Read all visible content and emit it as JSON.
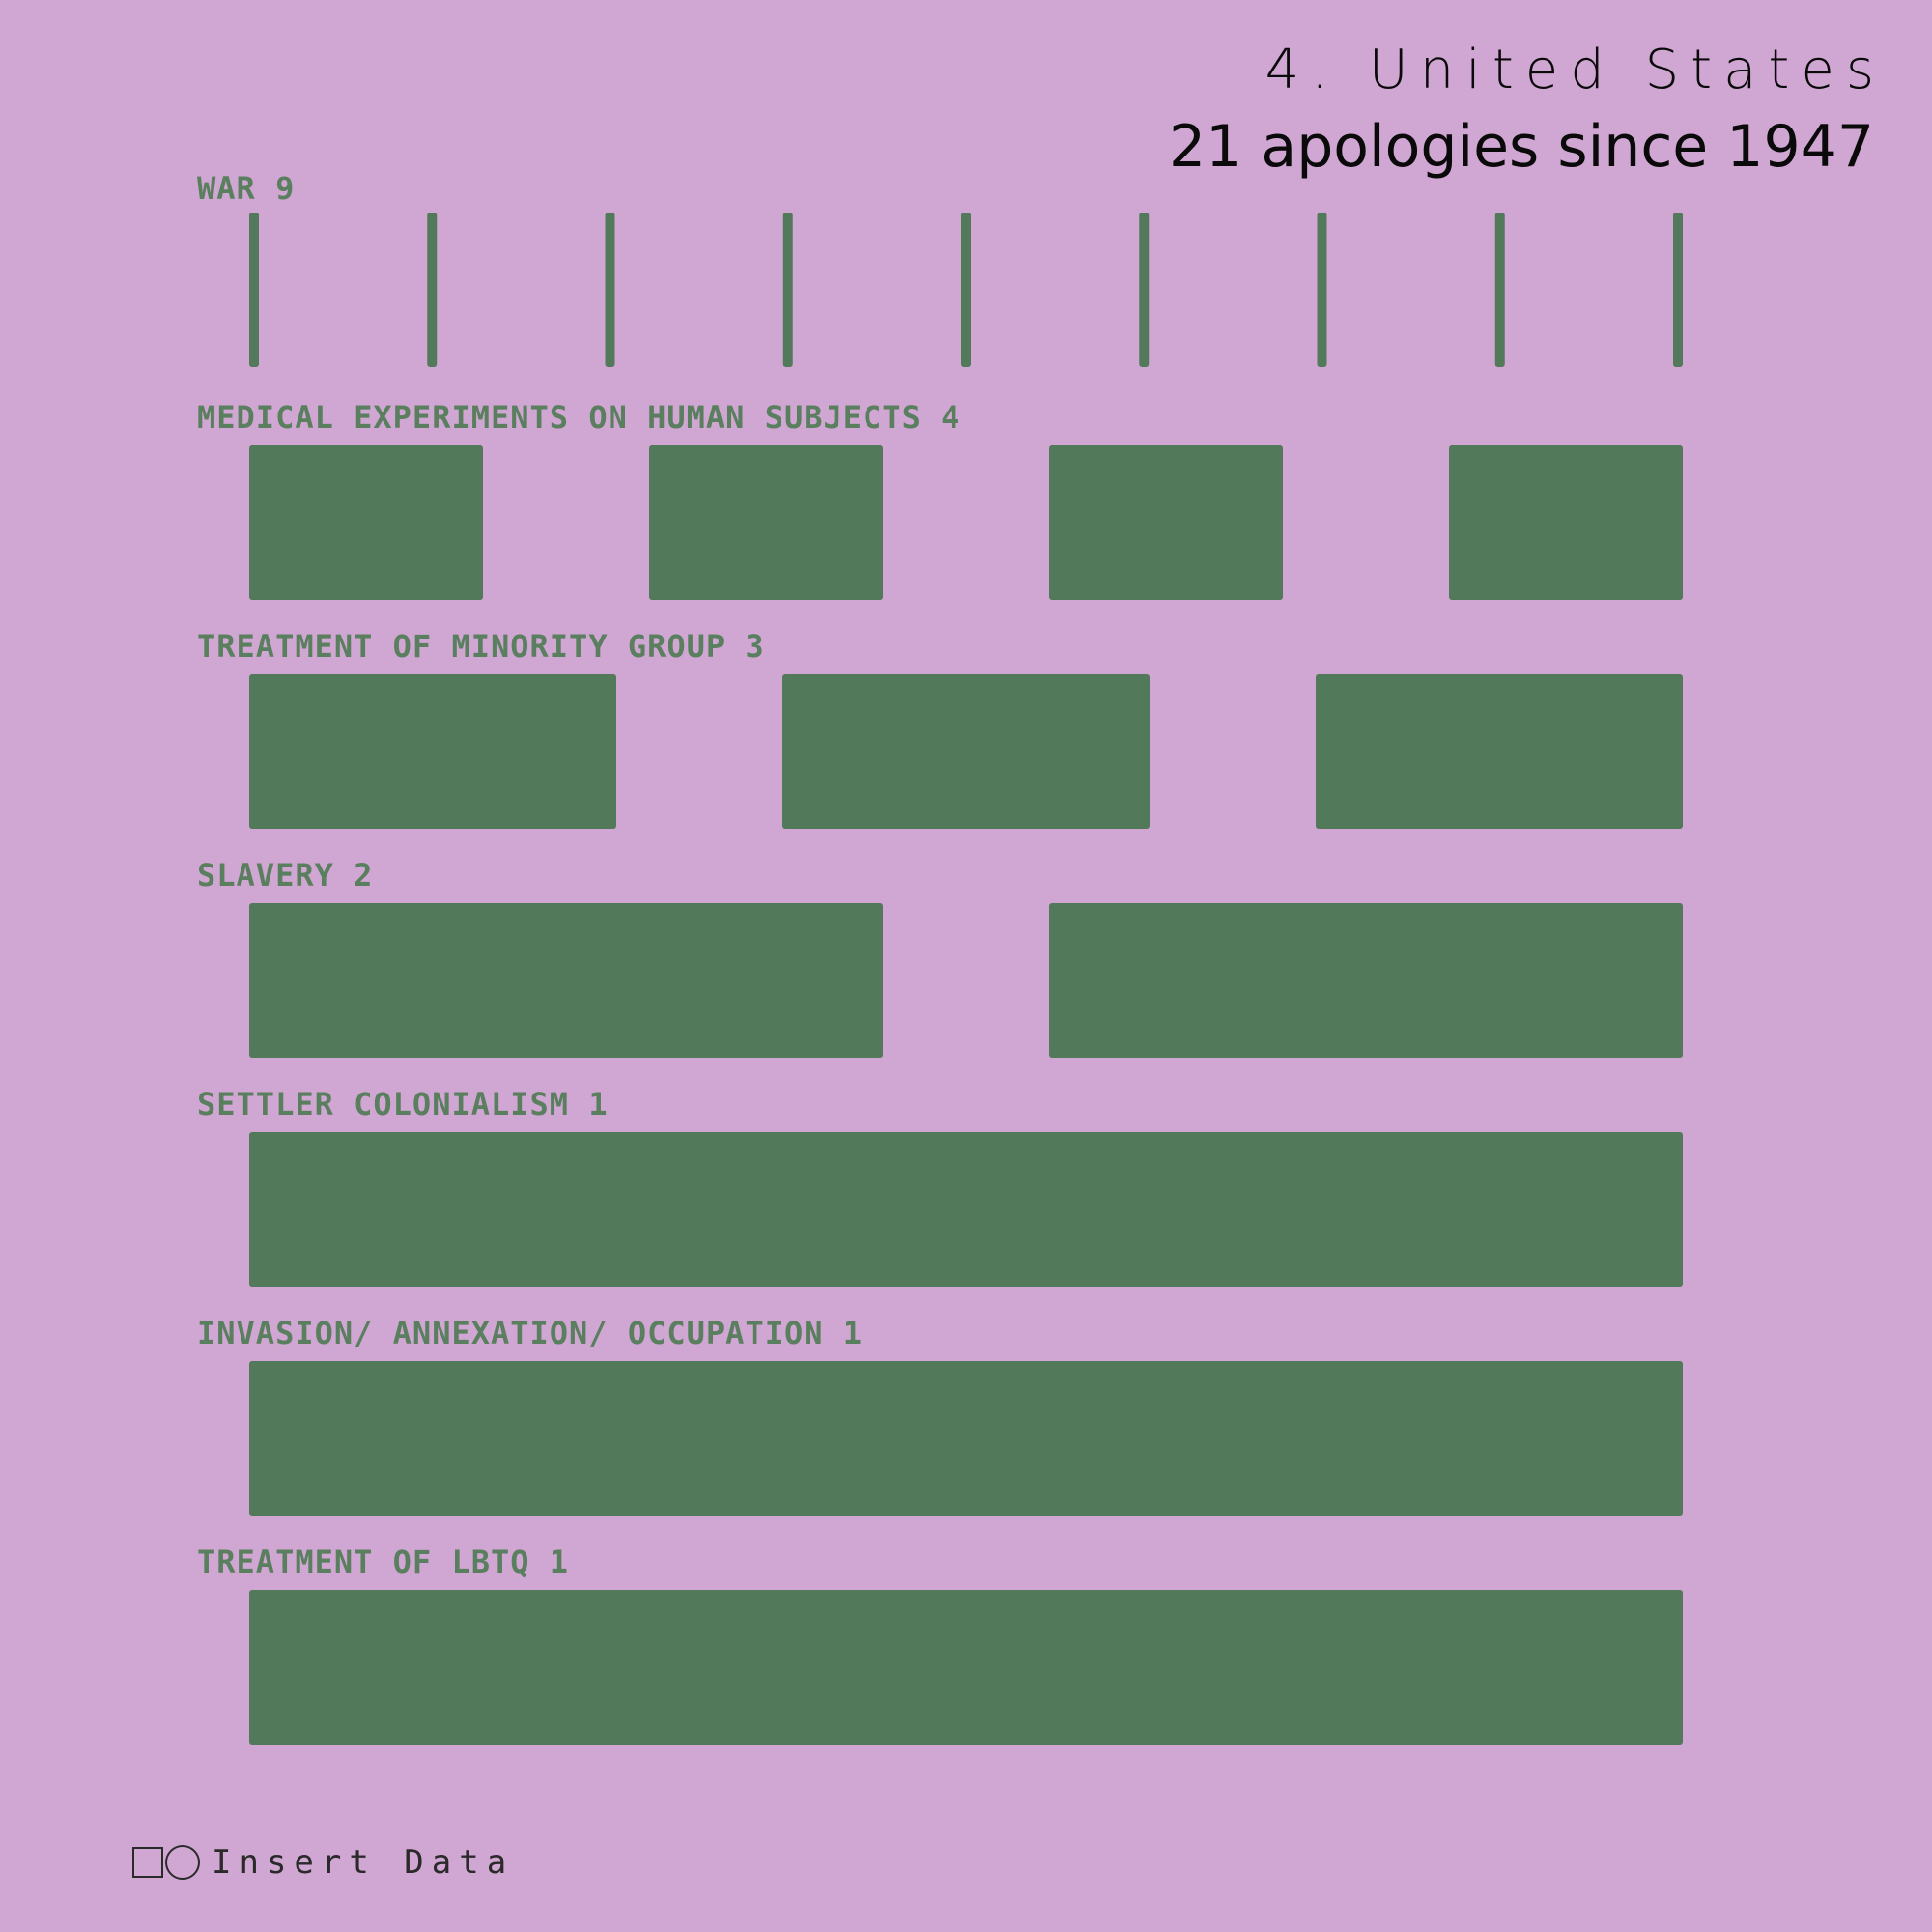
{
  "header": {
    "title": "4. United States",
    "subtitle": "21 apologies since 1947"
  },
  "footer": {
    "brand": "Insert Data"
  },
  "colors": {
    "background": "#d0a6d2",
    "mark": "#527a5a",
    "label": "#5a7f5f",
    "title": "#0a0a0a"
  },
  "chart_data": {
    "type": "bar",
    "title": "4. United States",
    "subtitle": "21 apologies since 1947",
    "total": 21,
    "categories": [
      "WAR",
      "MEDICAL EXPERIMENTS ON HUMAN SUBJECTS",
      "TREATMENT OF MINORITY GROUP",
      "SLAVERY",
      "SETTLER COLONIALISM",
      "INVASION/ ANNEXATION/ OCCUPATION",
      "TREATMENT OF LBTQ"
    ],
    "values": [
      9,
      4,
      3,
      2,
      1,
      1,
      1
    ],
    "labels": [
      "WAR 9",
      "MEDICAL EXPERIMENTS ON HUMAN SUBJECTS 4",
      "TREATMENT OF MINORITY GROUP 3",
      "SLAVERY 2",
      "SETTLER COLONIALISM 1",
      "INVASION/ ANNEXATION/ OCCUPATION 1",
      "TREATMENT OF LBTQ 1"
    ],
    "xlabel": "",
    "ylabel": ""
  }
}
